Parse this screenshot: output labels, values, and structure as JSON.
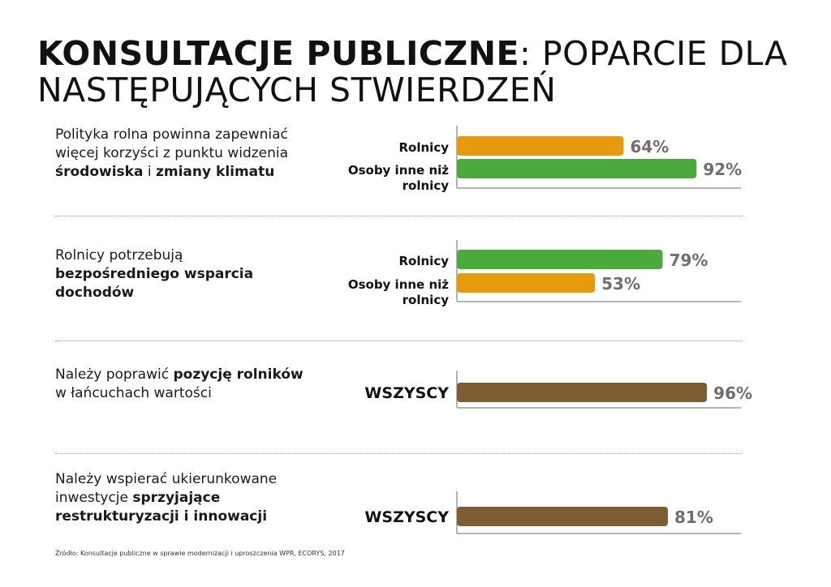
{
  "title": {
    "bold": "KONSULTACJE PUBLICZNE",
    "rest": ": POPARCIE DLA NASTĘPUJĄCYCH STWIERDZEŃ"
  },
  "statements": [
    {
      "parts": [
        {
          "t": "Polityka rolna powinna zapewniać więcej korzyści z punktu widzenia ",
          "b": false
        },
        {
          "t": "środowiska",
          "b": true
        },
        {
          "t": " i ",
          "b": false
        },
        {
          "t": "zmiany klimatu",
          "b": true
        }
      ]
    },
    {
      "parts": [
        {
          "t": "Rolnicy potrzebują ",
          "b": false
        },
        {
          "t": "bezpośredniego wsparcia dochodów",
          "b": true
        }
      ]
    },
    {
      "parts": [
        {
          "t": "Należy poprawić ",
          "b": false
        },
        {
          "t": "pozycję rolników",
          "b": true
        },
        {
          "t": " w łańcuchach wartości",
          "b": false
        }
      ]
    },
    {
      "parts": [
        {
          "t": "Należy wspierać ukierunkowane inwestycje ",
          "b": false
        },
        {
          "t": "sprzyjające restrukturyzacji i innowacji",
          "b": true
        }
      ]
    }
  ],
  "source": "Źródło: Konsultacje publiczne w sprawie modernizacji i uproszczenia WPR, ECORYS, 2017",
  "colors": {
    "orange": "#e89a0f",
    "green": "#4aaa3c",
    "brown": "#7e5d35",
    "axis": "#9a9a9a",
    "value_text": "#6f6f6f"
  },
  "chart_data": [
    {
      "type": "bar",
      "orientation": "horizontal",
      "unit": "%",
      "categories": [
        "Rolnicy",
        "Osoby inne niż rolnicy"
      ],
      "values": [
        64,
        92
      ],
      "labels": [
        "64%",
        "92%"
      ],
      "colors": [
        "#e89a0f",
        "#4aaa3c"
      ]
    },
    {
      "type": "bar",
      "orientation": "horizontal",
      "unit": "%",
      "categories": [
        "Rolnicy",
        "Osoby inne niż rolnicy"
      ],
      "values": [
        79,
        53
      ],
      "labels": [
        "79%",
        "53%"
      ],
      "colors": [
        "#4aaa3c",
        "#e89a0f"
      ]
    },
    {
      "type": "bar",
      "orientation": "horizontal",
      "unit": "%",
      "categories": [
        "WSZYSCY"
      ],
      "values": [
        96
      ],
      "labels": [
        "96%"
      ],
      "colors": [
        "#7e5d35"
      ]
    },
    {
      "type": "bar",
      "orientation": "horizontal",
      "unit": "%",
      "categories": [
        "WSZYSCY"
      ],
      "values": [
        81
      ],
      "labels": [
        "81%"
      ],
      "colors": [
        "#7e5d35"
      ]
    }
  ]
}
